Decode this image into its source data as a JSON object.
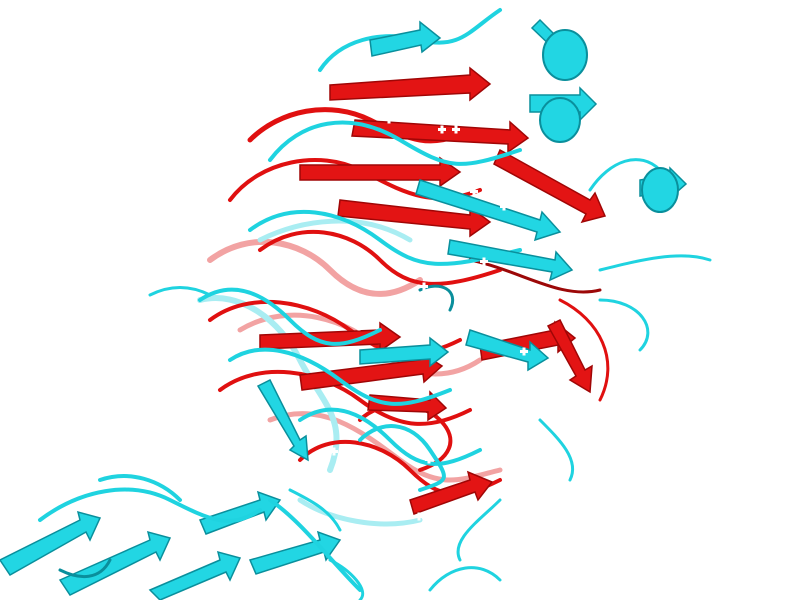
{
  "scene": {
    "background": "#ffffff",
    "structure_a_color": "#1fd3e0",
    "structure_b_color": "#e01010",
    "representation": "cartoon-ribbon-overlay"
  }
}
